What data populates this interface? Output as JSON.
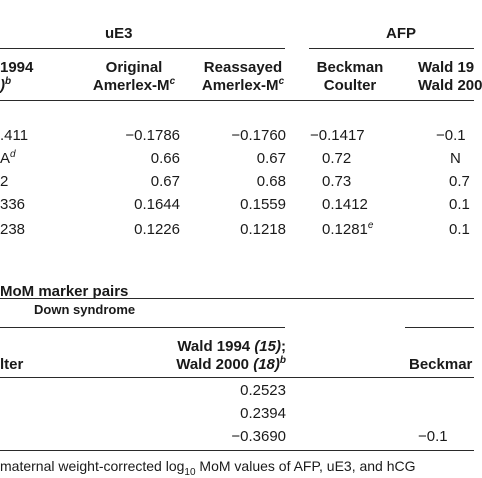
{
  "top_table": {
    "group_ue3": "uE3",
    "group_afp": "AFP",
    "col_wald_line1": "1994",
    "col_wald_line2_paren": ")",
    "col_wald_sup": "b",
    "col_orig_line1": "Original",
    "col_orig_line2": "Amerlex-M",
    "col_orig_sup": "c",
    "col_reassay_line1": "Reassayed",
    "col_reassay_line2": "Amerlex-M",
    "col_reassay_sup": "c",
    "col_beckman_line1": "Beckman",
    "col_beckman_line2": "Coulter",
    "col_wald_afp_line1": "Wald 19",
    "col_wald_afp_line2": "Wald 200",
    "rows": [
      {
        "c0": ".411",
        "c1": "−0.1786",
        "c2": "−0.1760",
        "c3": "−0.1417",
        "c4": "−0.1"
      },
      {
        "c0": "A",
        "c0_sup": "d",
        "c1": "0.66",
        "c2": "0.67",
        "c3": "0.72",
        "c4": "N"
      },
      {
        "c0": "2",
        "c1": "0.67",
        "c2": "0.68",
        "c3": "0.73",
        "c4": "0.7"
      },
      {
        "c0": "336",
        "c1": "0.1644",
        "c2": "0.1559",
        "c3": "0.1412",
        "c4": "0.1"
      },
      {
        "c0": "238",
        "c1": "0.1226",
        "c2": "0.1218",
        "c3": "0.1281",
        "c3_sup": "e",
        "c4": "0.1"
      }
    ]
  },
  "bottom_table": {
    "title": "MoM marker pairs",
    "group": "Down syndrome",
    "col_left": "lter",
    "col_wald_line1": "Wald 1994",
    "col_wald_ref1": "(15)",
    "col_wald_line2": "Wald 2000",
    "col_wald_ref2": "(18)",
    "col_wald_sup": "b",
    "col_beckman": "Beckmar",
    "rows": [
      {
        "wald": "0.2523"
      },
      {
        "wald": "0.2394"
      },
      {
        "wald": "−0.3690",
        "right": "−0.1"
      }
    ]
  },
  "footnote": {
    "before_sub": "maternal weight-corrected log",
    "sub": "10",
    "after_sub": " MoM values of AFP, uE3, and hCG"
  }
}
